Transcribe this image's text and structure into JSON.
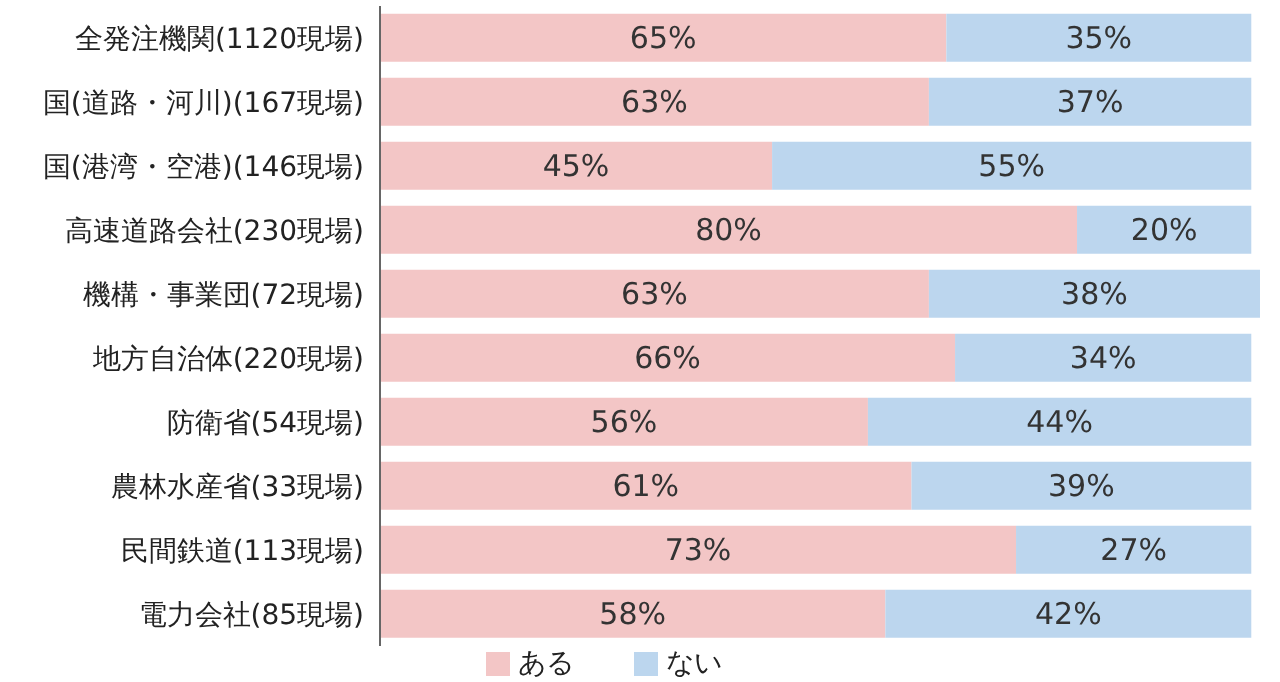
{
  "chart_data": {
    "type": "bar",
    "orientation": "horizontal",
    "stacked": true,
    "categories": [
      "全発注機関(1120現場)",
      "国(道路・河川)(167現場)",
      "国(港湾・空港)(146現場)",
      "高速道路会社(230現場)",
      "機構・事業団(72現場)",
      "地方自治体(220現場)",
      "防衛省(54現場)",
      "農林水産省(33現場)",
      "民間鉄道(113現場)",
      "電力会社(85現場)"
    ],
    "series": [
      {
        "name": "ある",
        "color": "#f3c6c6",
        "values": [
          65,
          63,
          45,
          80,
          63,
          66,
          56,
          61,
          73,
          58
        ],
        "value_labels": [
          "65%",
          "63%",
          "45%",
          "80%",
          "63%",
          "66%",
          "56%",
          "61%",
          "73%",
          "58%"
        ]
      },
      {
        "name": "ない",
        "color": "#bcd6ee",
        "values": [
          35,
          37,
          55,
          20,
          38,
          34,
          44,
          39,
          27,
          42
        ],
        "value_labels": [
          "35%",
          "37%",
          "55%",
          "20%",
          "38%",
          "34%",
          "44%",
          "39%",
          "27%",
          "42%"
        ]
      }
    ],
    "xlim": [
      0,
      101
    ],
    "tick_labels": "y",
    "grid": false,
    "legend": "bottom"
  }
}
